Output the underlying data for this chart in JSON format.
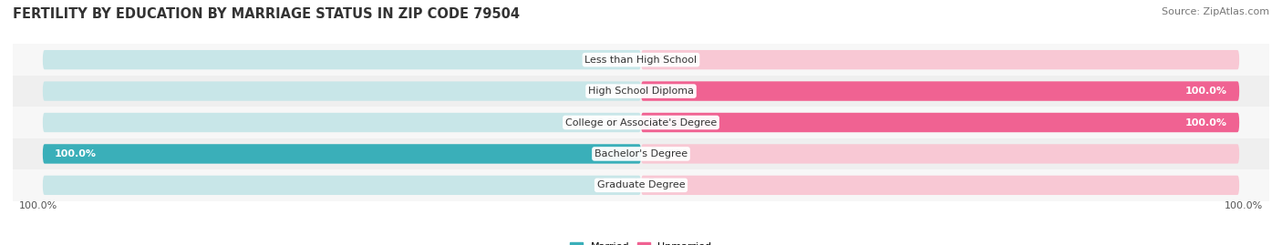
{
  "title": "FERTILITY BY EDUCATION BY MARRIAGE STATUS IN ZIP CODE 79504",
  "source": "Source: ZipAtlas.com",
  "categories": [
    "Less than High School",
    "High School Diploma",
    "College or Associate's Degree",
    "Bachelor's Degree",
    "Graduate Degree"
  ],
  "married": [
    0.0,
    0.0,
    0.0,
    100.0,
    0.0
  ],
  "unmarried": [
    0.0,
    100.0,
    100.0,
    0.0,
    0.0
  ],
  "married_color": "#3AAFB9",
  "married_light_color": "#C8E6E8",
  "unmarried_color": "#F06292",
  "unmarried_light_color": "#F8C8D4",
  "row_bg_colors": [
    "#F7F7F7",
    "#EFEFEF"
  ],
  "title_fontsize": 10.5,
  "source_fontsize": 8,
  "label_fontsize": 8,
  "tick_fontsize": 8,
  "bar_height": 0.62,
  "xlim": 100
}
